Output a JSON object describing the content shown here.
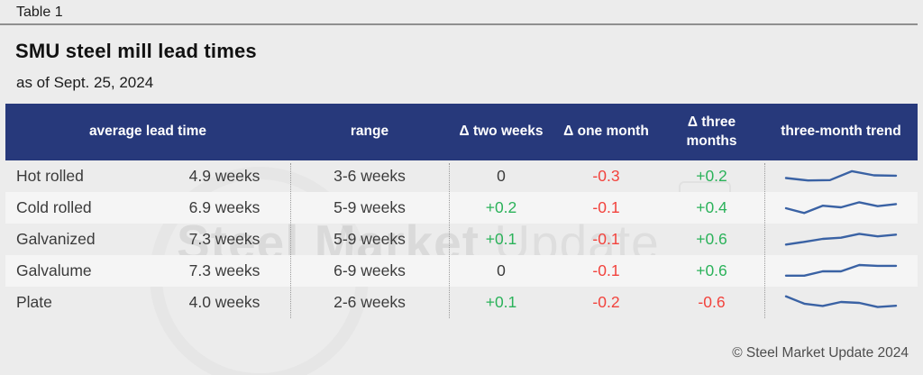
{
  "header": {
    "kicker": "Table 1",
    "title": "SMU steel mill lead times",
    "as_of": "as of Sept. 25, 2024"
  },
  "table": {
    "columns": [
      {
        "id": "avg",
        "label": "average lead time"
      },
      {
        "id": "range",
        "label": "range"
      },
      {
        "id": "d2w",
        "label": "Δ two weeks"
      },
      {
        "id": "d1m",
        "label": "Δ one month"
      },
      {
        "id": "d3m",
        "label": "Δ three months"
      },
      {
        "id": "trend",
        "label": "three-month trend"
      }
    ],
    "rows": [
      {
        "product": "Hot rolled",
        "avg": "4.9 weeks",
        "range": "3-6 weeks",
        "d2w": "0",
        "d1m": "-0.3",
        "d3m": "+0.2",
        "trend": [
          0.42,
          0.28,
          0.3,
          0.82,
          0.58,
          0.56
        ]
      },
      {
        "product": "Cold rolled",
        "avg": "6.9 weeks",
        "range": "5-9 weeks",
        "d2w": "+0.2",
        "d1m": "-0.1",
        "d3m": "+0.4",
        "trend": [
          0.5,
          0.22,
          0.65,
          0.55,
          0.85,
          0.62,
          0.74
        ]
      },
      {
        "product": "Galvanized",
        "avg": "7.3 weeks",
        "range": "5-9 weeks",
        "d2w": "+0.1",
        "d1m": "-0.1",
        "d3m": "+0.6",
        "trend": [
          0.22,
          0.38,
          0.55,
          0.62,
          0.85,
          0.7,
          0.8
        ]
      },
      {
        "product": "Galvalume",
        "avg": "7.3 weeks",
        "range": "6-9 weeks",
        "d2w": "0",
        "d1m": "-0.1",
        "d3m": "+0.6",
        "trend": [
          0.25,
          0.25,
          0.5,
          0.5,
          0.87,
          0.82,
          0.82
        ]
      },
      {
        "product": "Plate",
        "avg": "4.0 weeks",
        "range": "2-6 weeks",
        "d2w": "+0.1",
        "d1m": "-0.2",
        "d3m": "-0.6",
        "trend": [
          0.88,
          0.45,
          0.32,
          0.55,
          0.5,
          0.26,
          0.33
        ]
      }
    ]
  },
  "watermark": {
    "brand_bold": "Steel Market",
    "brand_light": "Update",
    "cru": "CRU"
  },
  "footer": {
    "copyright": "© Steel Market Update 2024"
  },
  "colors": {
    "header_bg": "#27397b",
    "positive": "#2bb25a",
    "negative": "#f2423c",
    "neutral_delta": "#3b3b3b",
    "sparkline": "#3a62a4",
    "page_bg": "#ececec",
    "row_stripe": "#f5f5f5",
    "rule": "#8f8f8f",
    "text": "#3b3b3b"
  },
  "chart_data": {
    "type": "table",
    "title": "SMU steel mill lead times",
    "subtitle": "as of Sept. 25, 2024",
    "columns": [
      "product",
      "average lead time",
      "range",
      "Δ two weeks",
      "Δ one month",
      "Δ three months",
      "three-month trend"
    ],
    "rows": [
      {
        "product": "Hot rolled",
        "average_lead_time_weeks": 4.9,
        "range_weeks": "3-6",
        "delta_two_weeks": 0,
        "delta_one_month": -0.3,
        "delta_three_months": 0.2
      },
      {
        "product": "Cold rolled",
        "average_lead_time_weeks": 6.9,
        "range_weeks": "5-9",
        "delta_two_weeks": 0.2,
        "delta_one_month": -0.1,
        "delta_three_months": 0.4
      },
      {
        "product": "Galvanized",
        "average_lead_time_weeks": 7.3,
        "range_weeks": "5-9",
        "delta_two_weeks": 0.1,
        "delta_one_month": -0.1,
        "delta_three_months": 0.6
      },
      {
        "product": "Galvalume",
        "average_lead_time_weeks": 7.3,
        "range_weeks": "6-9",
        "delta_two_weeks": 0,
        "delta_one_month": -0.1,
        "delta_three_months": 0.6
      },
      {
        "product": "Plate",
        "average_lead_time_weeks": 4.0,
        "range_weeks": "2-6",
        "delta_two_weeks": 0.1,
        "delta_one_month": -0.2,
        "delta_three_months": -0.6
      }
    ],
    "sparklines": {
      "type": "line",
      "ylim": [
        0,
        1
      ],
      "series": [
        {
          "name": "Hot rolled",
          "values": [
            0.42,
            0.28,
            0.3,
            0.82,
            0.58,
            0.56
          ]
        },
        {
          "name": "Cold rolled",
          "values": [
            0.5,
            0.22,
            0.65,
            0.55,
            0.85,
            0.62,
            0.74
          ]
        },
        {
          "name": "Galvanized",
          "values": [
            0.22,
            0.38,
            0.55,
            0.62,
            0.85,
            0.7,
            0.8
          ]
        },
        {
          "name": "Galvalume",
          "values": [
            0.25,
            0.25,
            0.5,
            0.5,
            0.87,
            0.82,
            0.82
          ]
        },
        {
          "name": "Plate",
          "values": [
            0.88,
            0.45,
            0.32,
            0.55,
            0.5,
            0.26,
            0.33
          ]
        }
      ]
    }
  }
}
